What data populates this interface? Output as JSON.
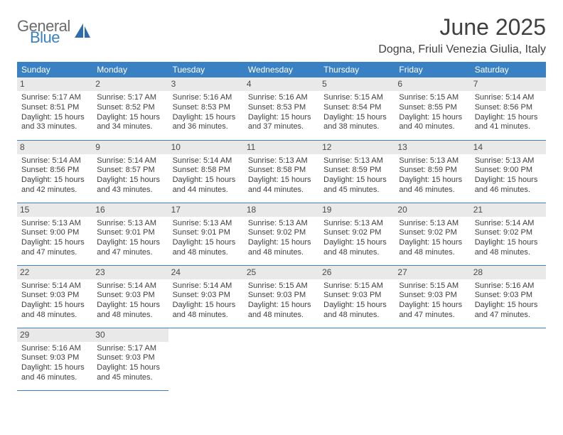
{
  "brand": {
    "general": "General",
    "blue": "Blue"
  },
  "title": "June 2025",
  "location": "Dogna, Friuli Venezia Giulia, Italy",
  "colors": {
    "header_bg": "#3a81c4",
    "header_text": "#ffffff",
    "daynum_bg": "#e9e9e9",
    "text": "#3f3f3f",
    "border": "#3a81c4"
  },
  "weekdays": [
    "Sunday",
    "Monday",
    "Tuesday",
    "Wednesday",
    "Thursday",
    "Friday",
    "Saturday"
  ],
  "weeks": [
    [
      {
        "n": "1",
        "sr": "Sunrise: 5:17 AM",
        "ss": "Sunset: 8:51 PM",
        "dl": "Daylight: 15 hours and 33 minutes."
      },
      {
        "n": "2",
        "sr": "Sunrise: 5:17 AM",
        "ss": "Sunset: 8:52 PM",
        "dl": "Daylight: 15 hours and 34 minutes."
      },
      {
        "n": "3",
        "sr": "Sunrise: 5:16 AM",
        "ss": "Sunset: 8:53 PM",
        "dl": "Daylight: 15 hours and 36 minutes."
      },
      {
        "n": "4",
        "sr": "Sunrise: 5:16 AM",
        "ss": "Sunset: 8:53 PM",
        "dl": "Daylight: 15 hours and 37 minutes."
      },
      {
        "n": "5",
        "sr": "Sunrise: 5:15 AM",
        "ss": "Sunset: 8:54 PM",
        "dl": "Daylight: 15 hours and 38 minutes."
      },
      {
        "n": "6",
        "sr": "Sunrise: 5:15 AM",
        "ss": "Sunset: 8:55 PM",
        "dl": "Daylight: 15 hours and 40 minutes."
      },
      {
        "n": "7",
        "sr": "Sunrise: 5:14 AM",
        "ss": "Sunset: 8:56 PM",
        "dl": "Daylight: 15 hours and 41 minutes."
      }
    ],
    [
      {
        "n": "8",
        "sr": "Sunrise: 5:14 AM",
        "ss": "Sunset: 8:56 PM",
        "dl": "Daylight: 15 hours and 42 minutes."
      },
      {
        "n": "9",
        "sr": "Sunrise: 5:14 AM",
        "ss": "Sunset: 8:57 PM",
        "dl": "Daylight: 15 hours and 43 minutes."
      },
      {
        "n": "10",
        "sr": "Sunrise: 5:14 AM",
        "ss": "Sunset: 8:58 PM",
        "dl": "Daylight: 15 hours and 44 minutes."
      },
      {
        "n": "11",
        "sr": "Sunrise: 5:13 AM",
        "ss": "Sunset: 8:58 PM",
        "dl": "Daylight: 15 hours and 44 minutes."
      },
      {
        "n": "12",
        "sr": "Sunrise: 5:13 AM",
        "ss": "Sunset: 8:59 PM",
        "dl": "Daylight: 15 hours and 45 minutes."
      },
      {
        "n": "13",
        "sr": "Sunrise: 5:13 AM",
        "ss": "Sunset: 8:59 PM",
        "dl": "Daylight: 15 hours and 46 minutes."
      },
      {
        "n": "14",
        "sr": "Sunrise: 5:13 AM",
        "ss": "Sunset: 9:00 PM",
        "dl": "Daylight: 15 hours and 46 minutes."
      }
    ],
    [
      {
        "n": "15",
        "sr": "Sunrise: 5:13 AM",
        "ss": "Sunset: 9:00 PM",
        "dl": "Daylight: 15 hours and 47 minutes."
      },
      {
        "n": "16",
        "sr": "Sunrise: 5:13 AM",
        "ss": "Sunset: 9:01 PM",
        "dl": "Daylight: 15 hours and 47 minutes."
      },
      {
        "n": "17",
        "sr": "Sunrise: 5:13 AM",
        "ss": "Sunset: 9:01 PM",
        "dl": "Daylight: 15 hours and 48 minutes."
      },
      {
        "n": "18",
        "sr": "Sunrise: 5:13 AM",
        "ss": "Sunset: 9:02 PM",
        "dl": "Daylight: 15 hours and 48 minutes."
      },
      {
        "n": "19",
        "sr": "Sunrise: 5:13 AM",
        "ss": "Sunset: 9:02 PM",
        "dl": "Daylight: 15 hours and 48 minutes."
      },
      {
        "n": "20",
        "sr": "Sunrise: 5:13 AM",
        "ss": "Sunset: 9:02 PM",
        "dl": "Daylight: 15 hours and 48 minutes."
      },
      {
        "n": "21",
        "sr": "Sunrise: 5:14 AM",
        "ss": "Sunset: 9:02 PM",
        "dl": "Daylight: 15 hours and 48 minutes."
      }
    ],
    [
      {
        "n": "22",
        "sr": "Sunrise: 5:14 AM",
        "ss": "Sunset: 9:03 PM",
        "dl": "Daylight: 15 hours and 48 minutes."
      },
      {
        "n": "23",
        "sr": "Sunrise: 5:14 AM",
        "ss": "Sunset: 9:03 PM",
        "dl": "Daylight: 15 hours and 48 minutes."
      },
      {
        "n": "24",
        "sr": "Sunrise: 5:14 AM",
        "ss": "Sunset: 9:03 PM",
        "dl": "Daylight: 15 hours and 48 minutes."
      },
      {
        "n": "25",
        "sr": "Sunrise: 5:15 AM",
        "ss": "Sunset: 9:03 PM",
        "dl": "Daylight: 15 hours and 48 minutes."
      },
      {
        "n": "26",
        "sr": "Sunrise: 5:15 AM",
        "ss": "Sunset: 9:03 PM",
        "dl": "Daylight: 15 hours and 48 minutes."
      },
      {
        "n": "27",
        "sr": "Sunrise: 5:15 AM",
        "ss": "Sunset: 9:03 PM",
        "dl": "Daylight: 15 hours and 47 minutes."
      },
      {
        "n": "28",
        "sr": "Sunrise: 5:16 AM",
        "ss": "Sunset: 9:03 PM",
        "dl": "Daylight: 15 hours and 47 minutes."
      }
    ],
    [
      {
        "n": "29",
        "sr": "Sunrise: 5:16 AM",
        "ss": "Sunset: 9:03 PM",
        "dl": "Daylight: 15 hours and 46 minutes."
      },
      {
        "n": "30",
        "sr": "Sunrise: 5:17 AM",
        "ss": "Sunset: 9:03 PM",
        "dl": "Daylight: 15 hours and 45 minutes."
      },
      null,
      null,
      null,
      null,
      null
    ]
  ]
}
